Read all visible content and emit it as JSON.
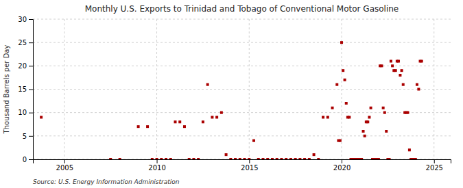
{
  "chart_data": {
    "type": "scatter",
    "title": "Monthly U.S. Exports to Trinidad and Tobago of Conventional Motor Gasoline",
    "ylabel": "Thousand Barrels per Day",
    "source": "Source: U.S. Energy Information Administration",
    "color": "#aa0000",
    "marker": "square",
    "grid": true,
    "xlim": [
      2003.3,
      2025.9
    ],
    "xticks": [
      2005,
      2010,
      2015,
      2020,
      2025
    ],
    "ylim": [
      0,
      30
    ],
    "yticks": [
      0,
      5,
      10,
      15,
      20,
      25,
      30
    ],
    "x": [
      2003.75,
      2007.5,
      2008.0,
      2009.0,
      2009.5,
      2009.75,
      2010.0,
      2010.25,
      2010.5,
      2010.75,
      2011.0,
      2011.25,
      2011.5,
      2011.75,
      2012.0,
      2012.25,
      2012.5,
      2012.75,
      2013.0,
      2013.25,
      2013.5,
      2013.75,
      2014.0,
      2014.25,
      2014.5,
      2014.75,
      2015.0,
      2015.25,
      2015.5,
      2015.75,
      2016.0,
      2016.25,
      2016.5,
      2016.75,
      2017.0,
      2017.25,
      2017.5,
      2017.75,
      2018.0,
      2018.25,
      2018.5,
      2018.75,
      2019.0,
      2019.25,
      2019.5,
      2019.75,
      2019.83,
      2019.92,
      2020.0,
      2020.08,
      2020.17,
      2020.25,
      2020.33,
      2020.42,
      2020.5,
      2020.58,
      2020.67,
      2020.75,
      2020.83,
      2020.92,
      2021.0,
      2021.08,
      2021.17,
      2021.25,
      2021.33,
      2021.42,
      2021.5,
      2021.58,
      2021.67,
      2021.75,
      2021.83,
      2021.92,
      2022.0,
      2022.08,
      2022.17,
      2022.25,
      2022.33,
      2022.42,
      2022.5,
      2022.58,
      2022.67,
      2022.75,
      2022.83,
      2022.92,
      2023.0,
      2023.08,
      2023.17,
      2023.25,
      2023.33,
      2023.42,
      2023.5,
      2023.58,
      2023.67,
      2023.75,
      2023.83,
      2023.92,
      2024.0,
      2024.08,
      2024.17,
      2024.25,
      2024.33
    ],
    "values": [
      9,
      0,
      0,
      7,
      7,
      0,
      0,
      0,
      0,
      0,
      8,
      8,
      7,
      0,
      0,
      0,
      8,
      16,
      9,
      9,
      10,
      1,
      0,
      0,
      0,
      0,
      0,
      4,
      0,
      0,
      0,
      0,
      0,
      0,
      0,
      0,
      0,
      0,
      0,
      0,
      1,
      0,
      9,
      9,
      11,
      16,
      4,
      4,
      25,
      19,
      17,
      12,
      9,
      9,
      0,
      0,
      0,
      0,
      0,
      0,
      0,
      0,
      6,
      5,
      8,
      8,
      9,
      11,
      0,
      0,
      0,
      0,
      0,
      20,
      20,
      11,
      10,
      6,
      0,
      0,
      21,
      20,
      19,
      19,
      21,
      21,
      18,
      19,
      16,
      10,
      10,
      10,
      2,
      0,
      0,
      0,
      0,
      16,
      15,
      21,
      21
    ]
  }
}
